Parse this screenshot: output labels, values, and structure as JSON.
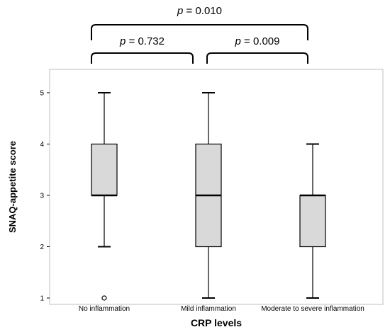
{
  "chart_data": {
    "type": "boxplot",
    "xlabel": "CRP levels",
    "ylabel": "SNAQ-appetite score",
    "ylim": [
      1,
      5
    ],
    "yticks": [
      "1",
      "2",
      "3",
      "4",
      "5"
    ],
    "categories": [
      "No inflammation",
      "Mild inflammation",
      "Moderate to severe inflammation"
    ],
    "boxes": [
      {
        "min": 2,
        "q1": 3,
        "median": 3,
        "q3": 4,
        "max": 5,
        "outliers": [
          1
        ]
      },
      {
        "min": 1,
        "q1": 2,
        "median": 3,
        "q3": 4,
        "max": 5,
        "outliers": []
      },
      {
        "min": 1,
        "q1": 2,
        "median": 3,
        "q3": 3,
        "max": 4,
        "outliers": []
      }
    ],
    "comparisons": [
      {
        "groups": [
          0,
          2
        ],
        "label": "p = 0.010"
      },
      {
        "groups": [
          0,
          1
        ],
        "label": "p = 0.732"
      },
      {
        "groups": [
          1,
          2
        ],
        "label": "p = 0.009"
      }
    ],
    "colors": {
      "box_fill": "#d9d9d9",
      "line": "#000000",
      "frame": "#bfbfbf"
    },
    "grid": false
  }
}
